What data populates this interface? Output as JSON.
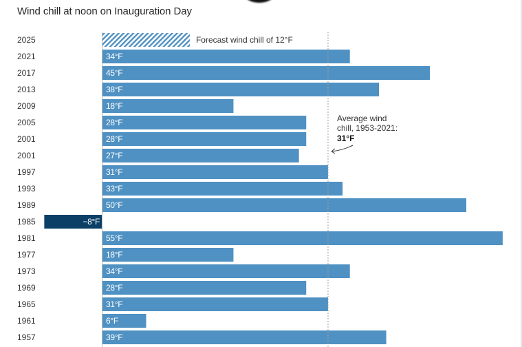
{
  "chart_data": {
    "type": "bar",
    "orientation": "horizontal",
    "title": "Wind chill at noon on Inauguration Day",
    "unit": "°F",
    "categories": [
      "2025",
      "2021",
      "2017",
      "2013",
      "2009",
      "2005",
      "2001",
      "2001",
      "1997",
      "1993",
      "1989",
      "1985",
      "1981",
      "1977",
      "1973",
      "1969",
      "1965",
      "1961",
      "1957"
    ],
    "values": [
      12,
      34,
      45,
      38,
      18,
      28,
      28,
      27,
      31,
      33,
      50,
      -8,
      55,
      18,
      34,
      28,
      31,
      6,
      39
    ],
    "labels": [
      "",
      "34°F",
      "45°F",
      "38°F",
      "18°F",
      "28°F",
      "28°F",
      "27°F",
      "31°F",
      "33°F",
      "50°F",
      "−8°F",
      "55°F",
      "18°F",
      "34°F",
      "28°F",
      "31°F",
      "6°F",
      "39°F"
    ],
    "forecast_index": 0,
    "forecast_label": "Forecast wind chill of 12°F",
    "average": {
      "value": 31,
      "lines": [
        "Average wind",
        "chill, 1953-2021:"
      ],
      "value_label": "31°F"
    },
    "xlim": [
      -8,
      55
    ],
    "grid": false,
    "colors": {
      "positive": "#4f91c3",
      "negative": "#0b3f66",
      "forecast_stripe": "#4f91c3",
      "average_line": "#999999",
      "axis": "#bbbbbb"
    }
  }
}
